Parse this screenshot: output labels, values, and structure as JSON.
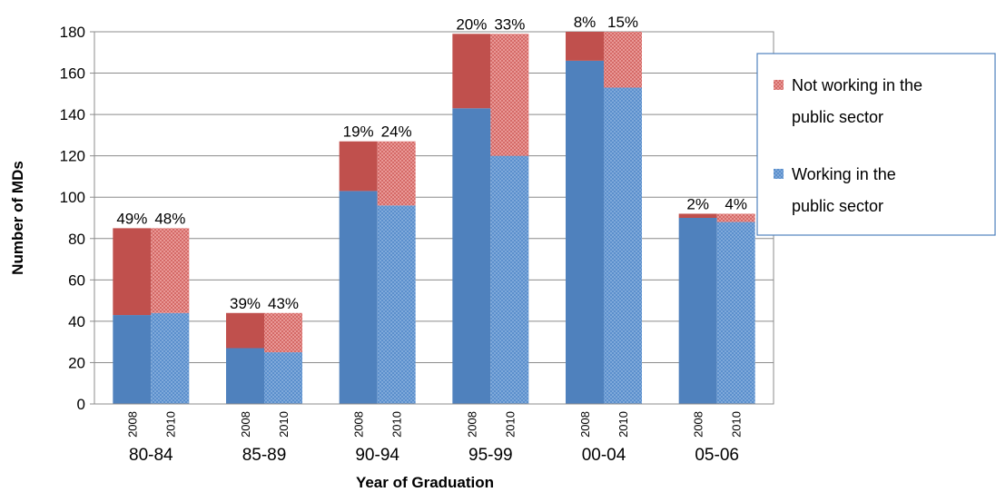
{
  "chart_data": {
    "type": "bar",
    "stacked": true,
    "xlabel": "Year of Graduation",
    "ylabel": "Number of MDs",
    "ylim": [
      0,
      180
    ],
    "yticks": [
      0,
      20,
      40,
      60,
      80,
      100,
      120,
      140,
      160,
      180
    ],
    "grid": true,
    "legend_position": "right",
    "groups": [
      "80-84",
      "85-89",
      "90-94",
      "95-99",
      "00-04",
      "05-06"
    ],
    "sub_categories": [
      "2008",
      "2010"
    ],
    "series": [
      {
        "name": "Working in the public sector",
        "color": "#4f81bd",
        "values_2008": [
          43,
          27,
          103,
          143,
          166,
          90
        ],
        "values_2010": [
          44,
          25,
          96,
          120,
          153,
          88
        ]
      },
      {
        "name": "Not working in the public sector",
        "color": "#c0504d",
        "values_2008": [
          42,
          17,
          24,
          36,
          14,
          2
        ],
        "values_2010": [
          41,
          19,
          31,
          59,
          27,
          4
        ]
      }
    ],
    "percent_labels_2008": [
      "49%",
      "39%",
      "19%",
      "20%",
      "8%",
      "2%"
    ],
    "percent_labels_2010": [
      "48%",
      "43%",
      "24%",
      "33%",
      "15%",
      "4%"
    ],
    "legend_entries": [
      {
        "label_line1": "Not working in the",
        "label_line2": "public sector",
        "color": "#c0504d"
      },
      {
        "label_line1": "Working in the",
        "label_line2": "public sector",
        "color": "#4f81bd"
      }
    ]
  }
}
